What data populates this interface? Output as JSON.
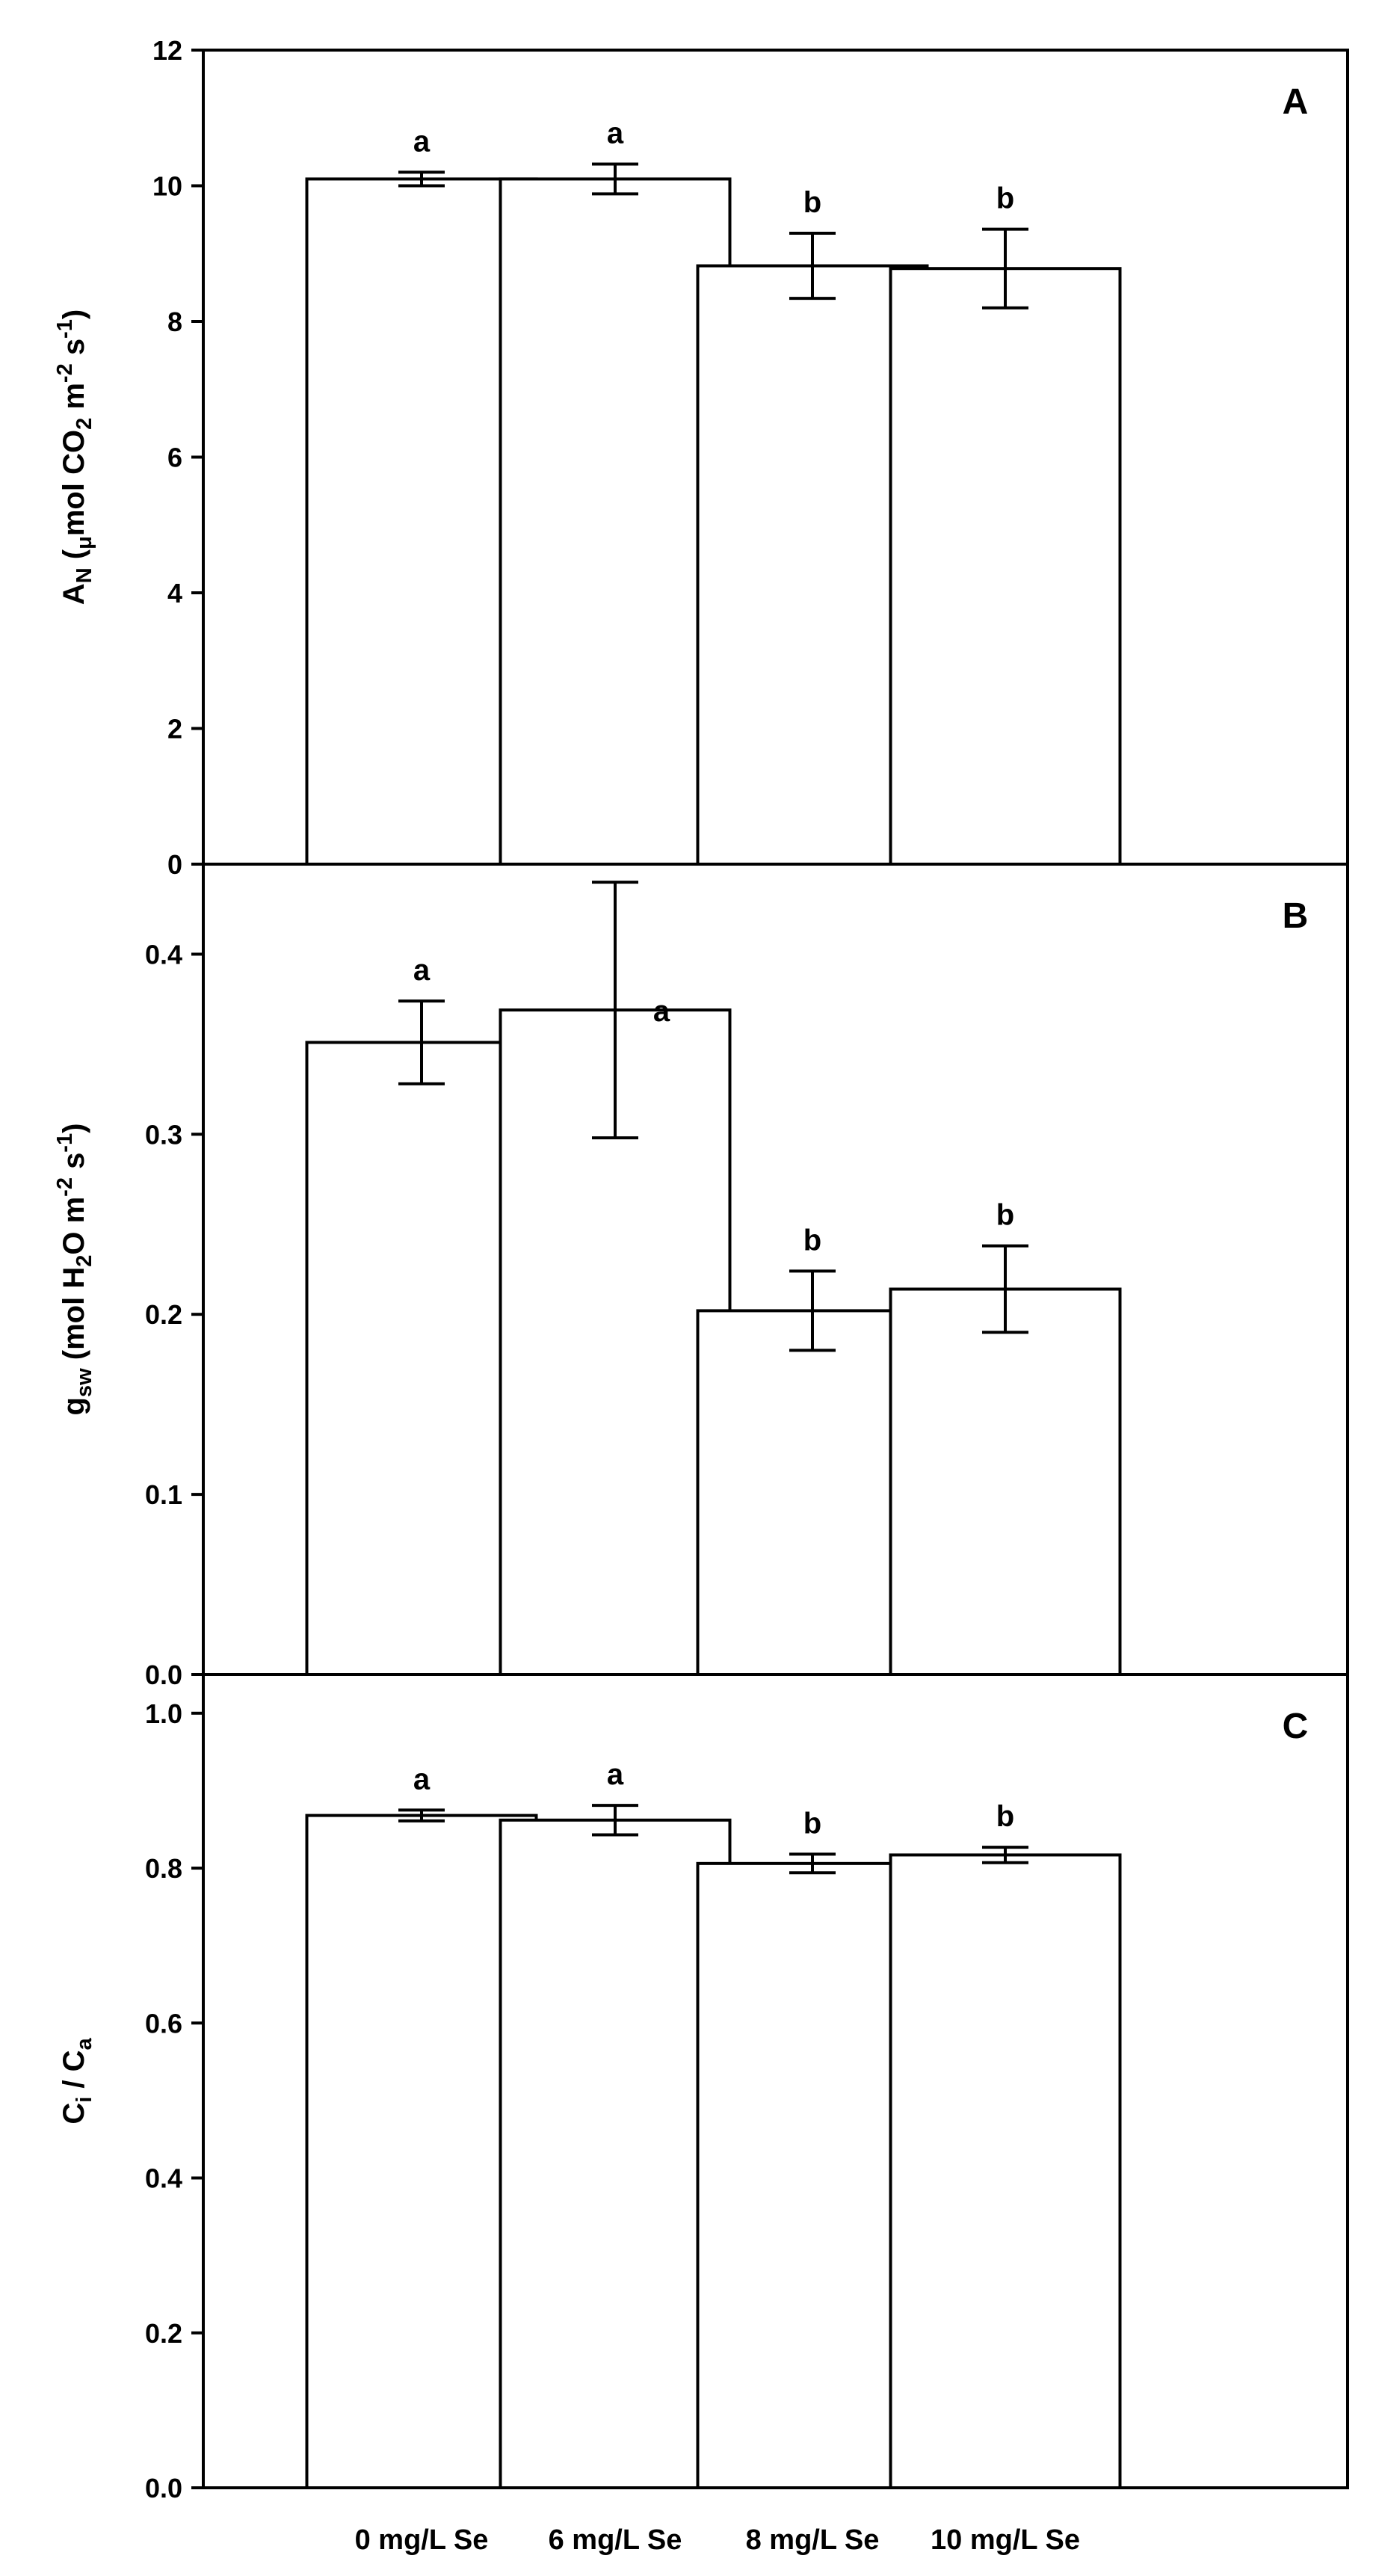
{
  "chart_data": [
    {
      "type": "bar",
      "panel": "A",
      "ylabel": "A_N (μmol CO_2 m^-2 s^-1)",
      "ylabel_parts": [
        "A",
        "N",
        " (",
        "μ",
        "mol CO",
        "2",
        " m",
        "-2",
        " s",
        "-1",
        ")"
      ],
      "categories": [
        "0 mg/L Se",
        "6 mg/L Se",
        "8 mg/L Se",
        "10 mg/L Se"
      ],
      "values": [
        10.1,
        10.1,
        8.82,
        8.78
      ],
      "errors": [
        0.1,
        0.22,
        0.48,
        0.58
      ],
      "significance": [
        "a",
        "a",
        "b",
        "b"
      ],
      "ylim": [
        0,
        12
      ],
      "yticks": [
        0,
        2,
        4,
        6,
        8,
        10,
        12
      ],
      "ytick_labels": [
        "0",
        "2",
        "4",
        "6",
        "8",
        "10",
        "12"
      ]
    },
    {
      "type": "bar",
      "panel": "B",
      "ylabel": "g_sw (mol H_2O m^-2 s^-1)",
      "ylabel_parts": [
        "g",
        "sw",
        " (mol H",
        "2",
        "O m",
        "-2",
        " s",
        "-1",
        ")"
      ],
      "categories": [
        "0 mg/L Se",
        "6 mg/L Se",
        "8 mg/L Se",
        "10 mg/L Se"
      ],
      "values": [
        0.351,
        0.369,
        0.202,
        0.214
      ],
      "errors": [
        0.023,
        0.071,
        0.022,
        0.024
      ],
      "significance": [
        "a",
        "a",
        "b",
        "b"
      ],
      "ylim": [
        0,
        0.45
      ],
      "yticks": [
        0,
        0.1,
        0.2,
        0.3,
        0.4
      ],
      "ytick_labels": [
        "0.0",
        "0.1",
        "0.2",
        "0.3",
        "0.4"
      ]
    },
    {
      "type": "bar",
      "panel": "C",
      "ylabel": "C_i / C_a",
      "ylabel_parts": [
        "C",
        "i",
        " / C",
        "a"
      ],
      "categories": [
        "0 mg/L Se",
        "6 mg/L Se",
        "8 mg/L Se",
        "10 mg/L Se"
      ],
      "values": [
        0.868,
        0.862,
        0.806,
        0.817
      ],
      "errors": [
        0.007,
        0.019,
        0.012,
        0.01
      ],
      "significance": [
        "a",
        "a",
        "b",
        "b"
      ],
      "ylim": [
        0,
        1.05
      ],
      "yticks": [
        0,
        0.2,
        0.4,
        0.6,
        0.8,
        1.0
      ],
      "ytick_labels": [
        "0.0",
        "0.2",
        "0.4",
        "0.6",
        "0.8",
        "1.0"
      ]
    }
  ]
}
